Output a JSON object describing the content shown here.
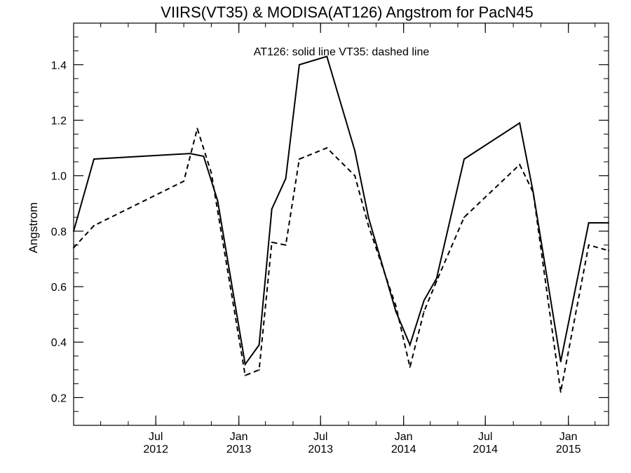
{
  "chart_data": {
    "type": "line",
    "title": "VIIRS(VT35) & MODISA(AT126)  Angstrom for PacN45",
    "annotation": "AT126: solid line   VT35: dashed line",
    "xlabel": "",
    "ylabel": "Angstrom",
    "xlim": [
      "2012-01-01",
      "2015-03-31"
    ],
    "ylim": [
      0.1,
      1.55
    ],
    "yticks": [
      0.2,
      0.4,
      0.6,
      0.8,
      1.0,
      1.2,
      1.4
    ],
    "ytick_labels": [
      "0.2",
      "0.4",
      "0.6",
      "0.8",
      "1.0",
      "1.2",
      "1.4"
    ],
    "xticks": [
      {
        "date": "2012-07-01",
        "line1": "Jul",
        "line2": "2012"
      },
      {
        "date": "2013-01-01",
        "line1": "Jan",
        "line2": "2013"
      },
      {
        "date": "2013-07-01",
        "line1": "Jul",
        "line2": "2013"
      },
      {
        "date": "2014-01-01",
        "line1": "Jan",
        "line2": "2014"
      },
      {
        "date": "2014-07-01",
        "line1": "Jul",
        "line2": "2014"
      },
      {
        "date": "2015-01-01",
        "line1": "Jan",
        "line2": "2015"
      }
    ],
    "minor_ticks_monthly": true,
    "grid": false,
    "series": [
      {
        "label": "AT126",
        "style": "solid",
        "color": "#000000",
        "points": [
          {
            "x": "2012-01-01",
            "y": 0.8
          },
          {
            "x": "2012-02-15",
            "y": 1.06
          },
          {
            "x": "2012-09-15",
            "y": 1.08
          },
          {
            "x": "2012-10-15",
            "y": 1.07
          },
          {
            "x": "2012-11-15",
            "y": 0.91
          },
          {
            "x": "2013-01-15",
            "y": 0.32
          },
          {
            "x": "2013-02-15",
            "y": 0.39
          },
          {
            "x": "2013-03-15",
            "y": 0.88
          },
          {
            "x": "2013-04-15",
            "y": 0.99
          },
          {
            "x": "2013-05-15",
            "y": 1.4
          },
          {
            "x": "2013-07-15",
            "y": 1.43
          },
          {
            "x": "2013-09-15",
            "y": 1.09
          },
          {
            "x": "2013-10-15",
            "y": 0.85
          },
          {
            "x": "2013-12-15",
            "y": 0.51
          },
          {
            "x": "2014-01-15",
            "y": 0.39
          },
          {
            "x": "2014-02-15",
            "y": 0.55
          },
          {
            "x": "2014-03-15",
            "y": 0.63
          },
          {
            "x": "2014-05-15",
            "y": 1.06
          },
          {
            "x": "2014-09-15",
            "y": 1.19
          },
          {
            "x": "2014-10-15",
            "y": 0.94
          },
          {
            "x": "2014-12-15",
            "y": 0.33
          },
          {
            "x": "2015-02-15",
            "y": 0.83
          },
          {
            "x": "2015-03-31",
            "y": 0.83
          }
        ]
      },
      {
        "label": "VT35",
        "style": "dashed",
        "color": "#000000",
        "points": [
          {
            "x": "2012-01-01",
            "y": 0.74
          },
          {
            "x": "2012-02-15",
            "y": 0.82
          },
          {
            "x": "2012-09-01",
            "y": 0.98
          },
          {
            "x": "2012-10-01",
            "y": 1.17
          },
          {
            "x": "2012-11-01",
            "y": 1.01
          },
          {
            "x": "2013-01-15",
            "y": 0.28
          },
          {
            "x": "2013-02-15",
            "y": 0.3
          },
          {
            "x": "2013-03-15",
            "y": 0.76
          },
          {
            "x": "2013-04-15",
            "y": 0.75
          },
          {
            "x": "2013-05-15",
            "y": 1.06
          },
          {
            "x": "2013-07-15",
            "y": 1.1
          },
          {
            "x": "2013-09-15",
            "y": 1.0
          },
          {
            "x": "2013-10-15",
            "y": 0.82
          },
          {
            "x": "2013-12-15",
            "y": 0.53
          },
          {
            "x": "2014-01-15",
            "y": 0.31
          },
          {
            "x": "2014-02-15",
            "y": 0.51
          },
          {
            "x": "2014-03-15",
            "y": 0.62
          },
          {
            "x": "2014-05-15",
            "y": 0.85
          },
          {
            "x": "2014-09-15",
            "y": 1.04
          },
          {
            "x": "2014-10-15",
            "y": 0.94
          },
          {
            "x": "2014-12-15",
            "y": 0.22
          },
          {
            "x": "2015-02-15",
            "y": 0.75
          },
          {
            "x": "2015-03-31",
            "y": 0.73
          }
        ]
      }
    ]
  }
}
